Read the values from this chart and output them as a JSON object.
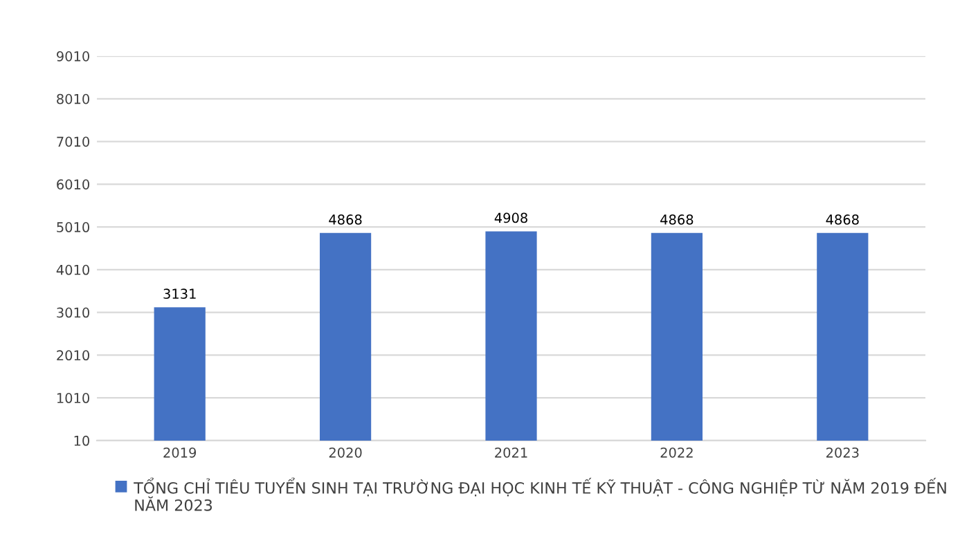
{
  "chart_data": {
    "type": "bar",
    "categories": [
      "2019",
      "2020",
      "2021",
      "2022",
      "2023"
    ],
    "series": [
      {
        "name": "TỔNG CHỈ TIÊU TUYỂN SINH TẠI TRƯỜNG ĐẠI HỌC KINH TẾ KỸ THUẬT - CÔNG NGHIỆP TỪ NĂM 2019 ĐẾN NĂM 2023",
        "color": "#4472c4",
        "values": [
          3131,
          4868,
          4908,
          4868,
          4868
        ]
      }
    ],
    "ylim": [
      10,
      9010
    ],
    "yticks": [
      10,
      1010,
      2010,
      3010,
      4010,
      5010,
      6010,
      7010,
      8010,
      9010
    ],
    "grid": "y",
    "legend": "bottom",
    "data_labels": true
  }
}
